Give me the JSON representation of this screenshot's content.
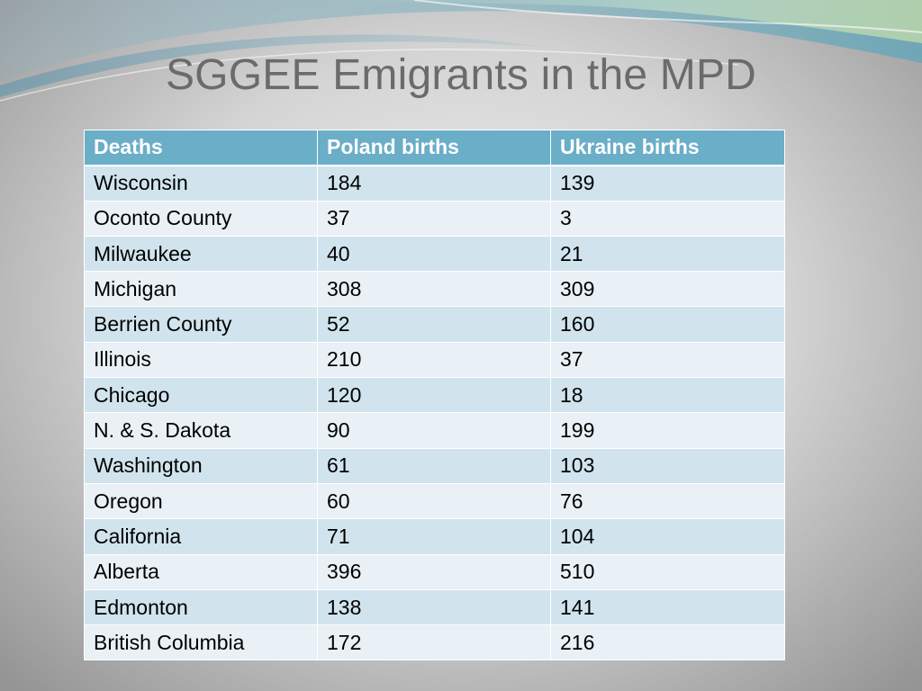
{
  "slide": {
    "title": "SGGEE Emigrants in the MPD"
  },
  "table": {
    "headers": [
      "Deaths",
      "Poland births",
      "Ukraine births"
    ],
    "rows": [
      [
        "Wisconsin",
        "184",
        "139"
      ],
      [
        "Oconto County",
        "37",
        "3"
      ],
      [
        "Milwaukee",
        "40",
        "21"
      ],
      [
        "Michigan",
        "308",
        "309"
      ],
      [
        "Berrien County",
        "52",
        "160"
      ],
      [
        "Illinois",
        "210",
        "37"
      ],
      [
        "Chicago",
        "120",
        "18"
      ],
      [
        "N. & S. Dakota",
        "90",
        "199"
      ],
      [
        "Washington",
        "61",
        "103"
      ],
      [
        "Oregon",
        "60",
        "76"
      ],
      [
        "California",
        "71",
        "104"
      ],
      [
        "Alberta",
        "396",
        "510"
      ],
      [
        "Edmonton",
        "138",
        "141"
      ],
      [
        "British Columbia",
        "172",
        "216"
      ]
    ]
  },
  "colors": {
    "header_bg": "#6aaec8",
    "row_odd_bg": "#d1e4ee",
    "row_even_bg": "#e9f1f6",
    "title_color": "#6b6b6b"
  }
}
